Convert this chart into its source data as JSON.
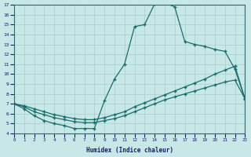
{
  "xlabel": "Humidex (Indice chaleur)",
  "xlim": [
    0,
    23
  ],
  "ylim": [
    4,
    17
  ],
  "yticks": [
    4,
    5,
    6,
    7,
    8,
    9,
    10,
    11,
    12,
    13,
    14,
    15,
    16,
    17
  ],
  "xticks": [
    0,
    1,
    2,
    3,
    4,
    5,
    6,
    7,
    8,
    9,
    10,
    11,
    12,
    13,
    14,
    15,
    16,
    17,
    18,
    19,
    20,
    21,
    22,
    23
  ],
  "bg_color": "#c8e8e8",
  "grid_color": "#a8cccc",
  "line_color": "#1a6e6a",
  "curve1_x": [
    0,
    1,
    2,
    3,
    4,
    5,
    6,
    7,
    8,
    9,
    10,
    11,
    12,
    13,
    14,
    15,
    16,
    17,
    18,
    19,
    20,
    21,
    22,
    23
  ],
  "curve1_y": [
    7.0,
    6.5,
    5.8,
    5.3,
    5.0,
    4.8,
    4.5,
    4.5,
    4.5,
    7.3,
    9.5,
    11.0,
    14.8,
    15.0,
    17.1,
    17.2,
    16.8,
    13.3,
    13.0,
    12.8,
    12.5,
    12.3,
    10.5,
    7.5
  ],
  "curve2_x": [
    0,
    1,
    2,
    3,
    4,
    5,
    6,
    7,
    8,
    9,
    10,
    11,
    12,
    13,
    14,
    15,
    16,
    17,
    18,
    19,
    20,
    21,
    22,
    23
  ],
  "curve2_y": [
    7.0,
    6.8,
    6.5,
    6.2,
    5.9,
    5.7,
    5.5,
    5.4,
    5.4,
    5.6,
    5.9,
    6.2,
    6.7,
    7.1,
    7.5,
    7.9,
    8.3,
    8.7,
    9.1,
    9.5,
    10.0,
    10.4,
    10.8,
    7.5
  ],
  "curve3_x": [
    0,
    1,
    2,
    3,
    4,
    5,
    6,
    7,
    8,
    9,
    10,
    11,
    12,
    13,
    14,
    15,
    16,
    17,
    18,
    19,
    20,
    21,
    22,
    23
  ],
  "curve3_y": [
    7.0,
    6.7,
    6.2,
    5.9,
    5.6,
    5.4,
    5.2,
    5.1,
    5.1,
    5.3,
    5.5,
    5.8,
    6.2,
    6.6,
    7.0,
    7.4,
    7.7,
    8.0,
    8.3,
    8.6,
    8.9,
    9.2,
    9.4,
    7.5
  ]
}
